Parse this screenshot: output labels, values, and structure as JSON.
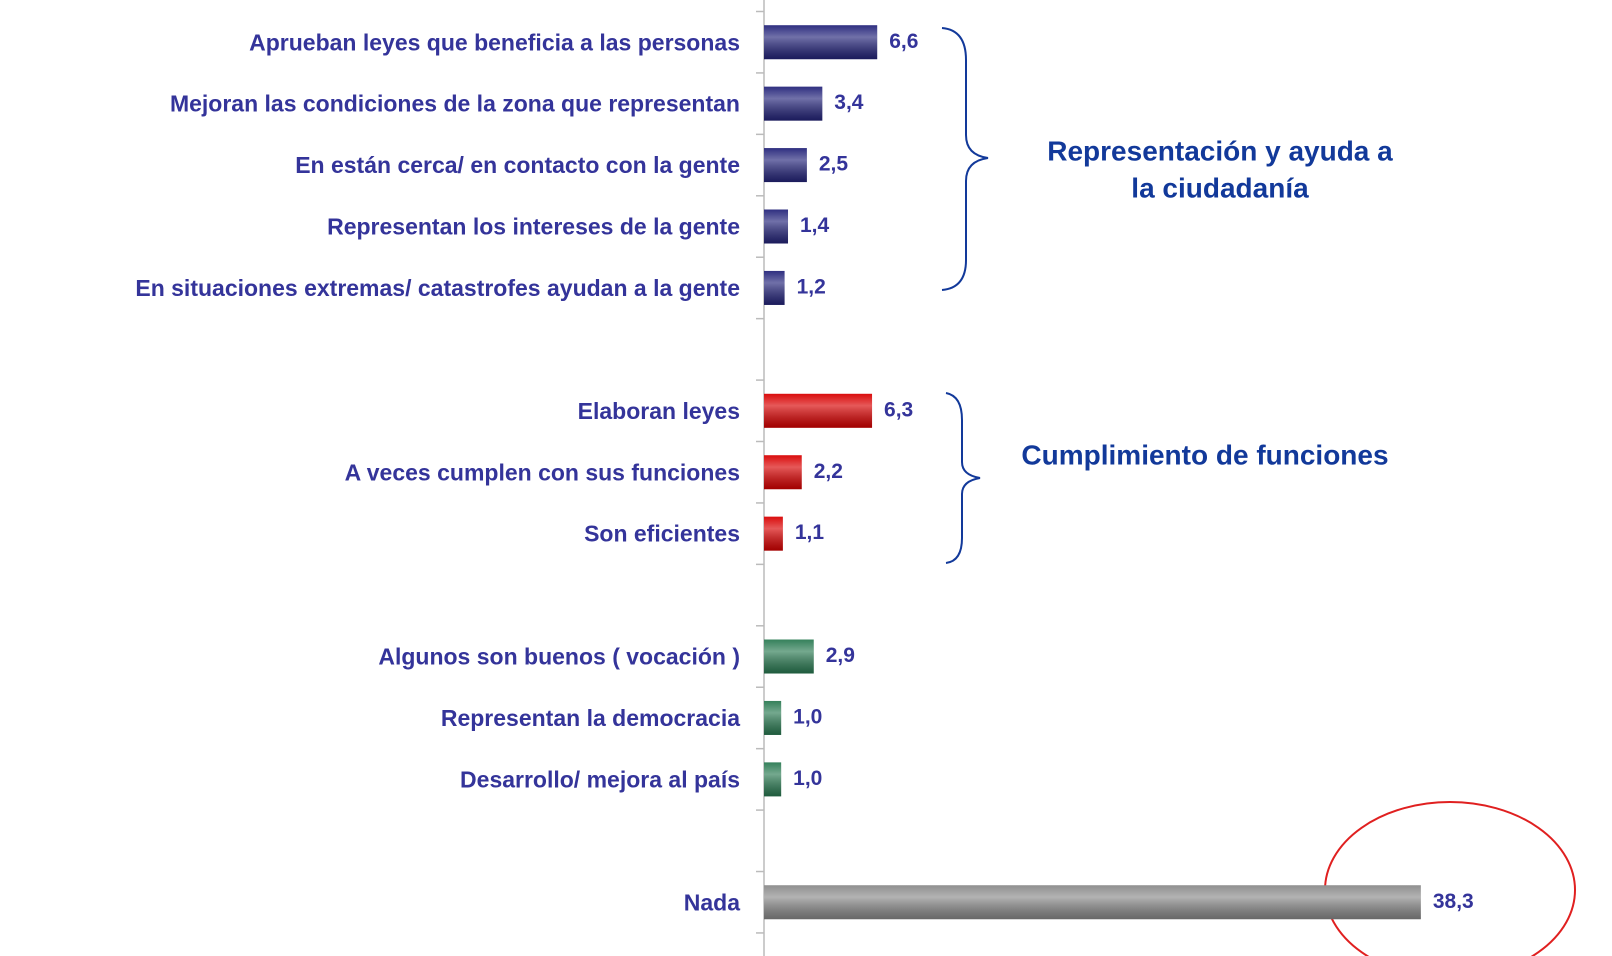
{
  "chart_data": {
    "type": "barh",
    "categories": [
      "Aprueban leyes que beneficia a las personas",
      "Mejoran las condiciones de la zona que representan",
      "En están cerca/ en contacto con la gente",
      "Representan los intereses de la gente",
      "En situaciones extremas/ catastrofes ayudan a la gente",
      null,
      "Elaboran leyes",
      "A veces cumplen con sus funciones",
      "Son eficientes",
      null,
      "Algunos son buenos ( vocación )",
      "Representan la democracia",
      "Desarrollo/ mejora al país",
      null,
      "Nada"
    ],
    "values": [
      6.6,
      3.4,
      2.5,
      1.4,
      1.2,
      null,
      6.3,
      2.2,
      1.1,
      null,
      2.9,
      1.0,
      1.0,
      null,
      38.3
    ],
    "value_labels": [
      "6,6",
      "3,4",
      "2,5",
      "1,4",
      "1,2",
      null,
      "6,3",
      "2,2",
      "1,1",
      null,
      "2,9",
      "1,0",
      "1,0",
      null,
      "38,3"
    ],
    "colors": [
      "#24247a",
      "#24247a",
      "#24247a",
      "#24247a",
      "#24247a",
      null,
      "#d80000",
      "#d80000",
      "#d80000",
      null,
      "#2a7a52",
      "#2a7a52",
      "#2a7a52",
      null,
      "#8a8a8a"
    ],
    "xlim": [
      0,
      40
    ],
    "annotations": [
      {
        "lines": [
          "Representación y ayuda a",
          "la ciudadanía"
        ]
      },
      {
        "lines": [
          "Cumplimiento de funciones"
        ]
      }
    ]
  }
}
